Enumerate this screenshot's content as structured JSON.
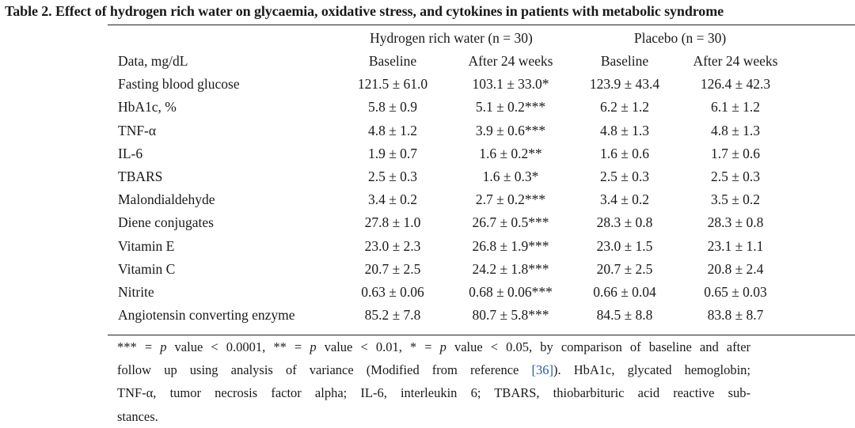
{
  "title": "Table 2. Effect of hydrogen rich water on glycaemia, oxidative stress, and cytokines in patients with metabolic syndrome",
  "groups": [
    "Hydrogen rich water (n = 30)",
    "Placebo (n = 30)"
  ],
  "header": [
    "Data, mg/dL",
    "Baseline",
    "After 24 weeks",
    "Baseline",
    "After 24 weeks"
  ],
  "rows": [
    {
      "label": "Fasting blood glucose",
      "v": [
        "121.5 ± 61.0",
        "103.1 ± 33.0*",
        "123.9 ± 43.4",
        "126.4 ± 42.3"
      ]
    },
    {
      "label": "HbA1c, %",
      "v": [
        "5.8 ± 0.9",
        "5.1 ± 0.2***",
        "6.2 ± 1.2",
        "6.1 ± 1.2"
      ]
    },
    {
      "label": "TNF-α",
      "v": [
        "4.8 ± 1.2",
        "3.9 ± 0.6***",
        "4.8 ± 1.3",
        "4.8 ± 1.3"
      ]
    },
    {
      "label": "IL-6",
      "v": [
        "1.9 ± 0.7",
        "1.6 ± 0.2**",
        "1.6 ± 0.6",
        "1.7 ± 0.6"
      ]
    },
    {
      "label": "TBARS",
      "v": [
        "2.5 ± 0.3",
        "1.6 ± 0.3*",
        "2.5 ± 0.3",
        "2.5 ± 0.3"
      ]
    },
    {
      "label": "Malondialdehyde",
      "v": [
        "3.4 ± 0.2",
        "2.7 ± 0.2***",
        "3.4 ± 0.2",
        "3.5 ± 0.2"
      ]
    },
    {
      "label": "Diene conjugates",
      "v": [
        "27.8 ± 1.0",
        "26.7 ± 0.5***",
        "28.3 ± 0.8",
        "28.3 ± 0.8"
      ]
    },
    {
      "label": "Vitamin E",
      "v": [
        "23.0 ± 2.3",
        "26.8 ± 1.9***",
        "23.0 ± 1.5",
        "23.1 ± 1.1"
      ]
    },
    {
      "label": "Vitamin C",
      "v": [
        "20.7 ± 2.5",
        "24.2 ± 1.8***",
        "20.7 ± 2.5",
        "20.8 ± 2.4"
      ]
    },
    {
      "label": "Nitrite",
      "v": [
        "0.63 ± 0.06",
        "0.68 ± 0.06***",
        "0.66 ± 0.04",
        "0.65 ± 0.03"
      ]
    },
    {
      "label": "Angiotensin converting enzyme",
      "v": [
        "85.2 ± 7.8",
        "80.7 ± 5.8***",
        "84.5 ± 8.8",
        "83.8 ± 8.7"
      ]
    }
  ],
  "footnote": {
    "sig3": "*** = ",
    "p1": "p",
    "t1": " value < 0.0001, ** = ",
    "p2": "p",
    "t2": " value < 0.01, * = ",
    "p3": "p",
    "t3": " value < 0.05, by comparison of baseline and after",
    "l2a": "follow up using analysis of variance (Modified from reference ",
    "ref": "[36]",
    "l2b": "). HbA1c, glycated hemoglobin;",
    "l3": "TNF-α, tumor necrosis factor alpha; IL-6, interleukin 6; TBARS, thiobarbituric acid reactive sub-",
    "l4": "stances."
  }
}
